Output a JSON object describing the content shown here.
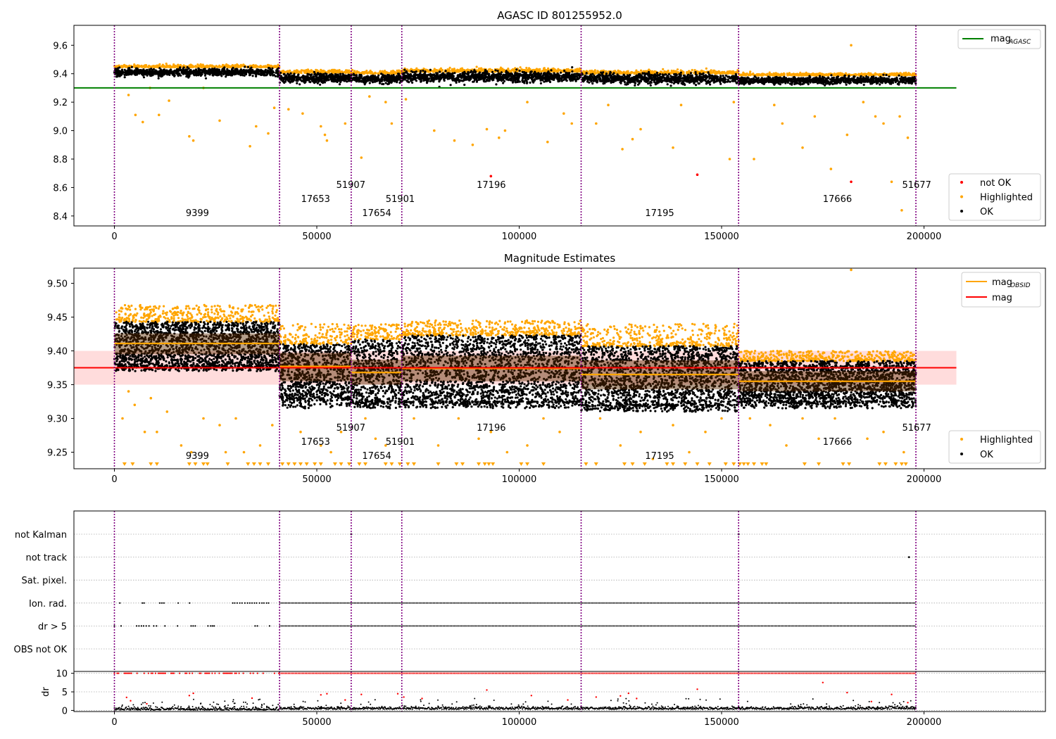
{
  "chart_data": [
    {
      "type": "scatter",
      "title": "AGASC ID 801255952.0",
      "xlim": [
        -10000,
        230000
      ],
      "ylim": [
        8.33,
        9.74
      ],
      "x_ticks": [
        0,
        50000,
        100000,
        150000,
        200000
      ],
      "y_ticks": [
        8.4,
        8.6,
        8.8,
        9.0,
        9.2,
        9.4,
        9.6
      ],
      "y_tick_labels": [
        "8.4",
        "8.6",
        "8.8",
        "9.0",
        "9.2",
        "9.4",
        "9.6"
      ],
      "mag_agasc": 9.3,
      "obs_boundaries": [
        0,
        40800,
        58500,
        71000,
        115300,
        154200,
        198000
      ],
      "obs_labels": [
        {
          "text": "9399",
          "x": 20500,
          "level": 0
        },
        {
          "text": "17653",
          "x": 49700,
          "level": 1
        },
        {
          "text": "51907",
          "x": 58400,
          "level": 2
        },
        {
          "text": "17654",
          "x": 64800,
          "level": 0
        },
        {
          "text": "51901",
          "x": 70600,
          "level": 1
        },
        {
          "text": "17196",
          "x": 93100,
          "level": 2
        },
        {
          "text": "17195",
          "x": 134700,
          "level": 0
        },
        {
          "text": "17666",
          "x": 178600,
          "level": 1
        },
        {
          "text": "51677",
          "x": 198200,
          "level": 2
        }
      ],
      "segments": [
        {
          "x0": 0,
          "x1": 40800,
          "center": 9.41,
          "spread": 0.013
        },
        {
          "x0": 40800,
          "x1": 58500,
          "center": 9.37,
          "spread": 0.016
        },
        {
          "x0": 58500,
          "x1": 71000,
          "center": 9.365,
          "spread": 0.014
        },
        {
          "x0": 71000,
          "x1": 115300,
          "center": 9.378,
          "spread": 0.018
        },
        {
          "x0": 115300,
          "x1": 154200,
          "center": 9.365,
          "spread": 0.017
        },
        {
          "x0": 154200,
          "x1": 198000,
          "center": 9.353,
          "spread": 0.012
        }
      ],
      "outliers_highlighted": [
        [
          3500,
          9.25
        ],
        [
          5200,
          9.11
        ],
        [
          7000,
          9.06
        ],
        [
          8800,
          9.3
        ],
        [
          11000,
          9.11
        ],
        [
          13500,
          9.21
        ],
        [
          18500,
          8.96
        ],
        [
          19500,
          8.93
        ],
        [
          22000,
          9.3
        ],
        [
          26000,
          9.07
        ],
        [
          33500,
          8.89
        ],
        [
          35000,
          9.03
        ],
        [
          38000,
          8.98
        ],
        [
          39500,
          9.16
        ],
        [
          43000,
          9.15
        ],
        [
          46500,
          9.12
        ],
        [
          51000,
          9.03
        ],
        [
          52000,
          8.97
        ],
        [
          52500,
          8.93
        ],
        [
          57000,
          9.05
        ],
        [
          61000,
          8.81
        ],
        [
          63000,
          9.24
        ],
        [
          67000,
          9.2
        ],
        [
          68500,
          9.05
        ],
        [
          72000,
          9.22
        ],
        [
          79000,
          9.0
        ],
        [
          84000,
          8.93
        ],
        [
          88500,
          8.9
        ],
        [
          92000,
          9.01
        ],
        [
          95000,
          8.95
        ],
        [
          96500,
          9.0
        ],
        [
          102000,
          9.2
        ],
        [
          107000,
          8.92
        ],
        [
          111000,
          9.12
        ],
        [
          113000,
          9.05
        ],
        [
          119000,
          9.05
        ],
        [
          122000,
          9.18
        ],
        [
          125500,
          8.87
        ],
        [
          128000,
          8.94
        ],
        [
          130000,
          9.01
        ],
        [
          138000,
          8.88
        ],
        [
          140000,
          9.18
        ],
        [
          152000,
          8.8
        ],
        [
          153000,
          9.2
        ],
        [
          158000,
          8.8
        ],
        [
          163000,
          9.18
        ],
        [
          165000,
          9.05
        ],
        [
          170000,
          8.88
        ],
        [
          173000,
          9.1
        ],
        [
          177000,
          8.73
        ],
        [
          181000,
          8.97
        ],
        [
          182000,
          9.6
        ],
        [
          185000,
          9.2
        ],
        [
          188000,
          9.1
        ],
        [
          192000,
          8.64
        ],
        [
          194500,
          8.44
        ],
        [
          196000,
          8.95
        ],
        [
          190000,
          9.05
        ],
        [
          194000,
          9.1
        ]
      ],
      "outliers_not_ok": [
        [
          93000,
          8.68
        ],
        [
          144000,
          8.69
        ],
        [
          182000,
          8.64
        ]
      ],
      "legends": [
        {
          "entries": [
            {
              "label": "mag",
              "subscript": "AGASC",
              "color": "#008000",
              "kind": "line"
            }
          ],
          "placement": "upper right"
        },
        {
          "entries": [
            {
              "label": "not OK",
              "color": "#ff0000",
              "kind": "dot"
            },
            {
              "label": "Highlighted",
              "color": "#ffa500",
              "kind": "dot"
            },
            {
              "label": "OK",
              "color": "#000000",
              "kind": "dot"
            }
          ],
          "placement": "lower right"
        }
      ]
    },
    {
      "type": "scatter",
      "title": "Magnitude Estimates",
      "xlim": [
        -10000,
        230000
      ],
      "ylim": [
        9.2255,
        9.5225
      ],
      "x_ticks": [
        0,
        50000,
        100000,
        150000,
        200000
      ],
      "y_ticks": [
        9.25,
        9.3,
        9.35,
        9.4,
        9.45,
        9.5
      ],
      "y_tick_labels": [
        "9.25",
        "9.30",
        "9.35",
        "9.40",
        "9.45",
        "9.50"
      ],
      "mag": 9.375,
      "mag_band": [
        9.35,
        9.4
      ],
      "mag_band_xrange": [
        -10000,
        208000
      ],
      "obs_mag": [
        {
          "x0": 0,
          "x1": 40800,
          "mag": 9.411,
          "lo": 9.395,
          "hi": 9.426
        },
        {
          "x0": 40800,
          "x1": 58500,
          "mag": 9.377,
          "lo": 9.355,
          "hi": 9.397
        },
        {
          "x0": 58500,
          "x1": 71000,
          "mag": 9.368,
          "lo": 9.35,
          "hi": 9.387
        },
        {
          "x0": 71000,
          "x1": 115300,
          "mag": 9.374,
          "lo": 9.355,
          "hi": 9.393
        },
        {
          "x0": 115300,
          "x1": 154200,
          "mag": 9.365,
          "lo": 9.343,
          "hi": 9.386
        },
        {
          "x0": 154200,
          "x1": 198000,
          "mag": 9.355,
          "lo": 9.34,
          "hi": 9.37
        }
      ],
      "core": [
        {
          "x0": 0,
          "x1": 40800,
          "hi": 9.443,
          "lo": 9.378,
          "top": 9.468,
          "bot": 9.37
        },
        {
          "x0": 40800,
          "x1": 58500,
          "hi": 9.41,
          "lo": 9.33,
          "top": 9.44,
          "bot": 9.315
        },
        {
          "x0": 58500,
          "x1": 71000,
          "hi": 9.417,
          "lo": 9.325,
          "top": 9.44,
          "bot": 9.315
        },
        {
          "x0": 71000,
          "x1": 115300,
          "hi": 9.423,
          "lo": 9.325,
          "top": 9.445,
          "bot": 9.315
        },
        {
          "x0": 115300,
          "x1": 154200,
          "hi": 9.407,
          "lo": 9.32,
          "top": 9.44,
          "bot": 9.31
        },
        {
          "x0": 154200,
          "x1": 198000,
          "hi": 9.385,
          "lo": 9.325,
          "top": 9.4,
          "bot": 9.315
        }
      ],
      "outliers_highlighted": [
        [
          2000,
          9.3
        ],
        [
          3500,
          9.34
        ],
        [
          5000,
          9.32
        ],
        [
          7500,
          9.28
        ],
        [
          9000,
          9.33
        ],
        [
          10500,
          9.28
        ],
        [
          13000,
          9.31
        ],
        [
          16500,
          9.26
        ],
        [
          19000,
          9.25
        ],
        [
          22000,
          9.3
        ],
        [
          26000,
          9.29
        ],
        [
          27500,
          9.25
        ],
        [
          30000,
          9.3
        ],
        [
          32000,
          9.25
        ],
        [
          36000,
          9.26
        ],
        [
          39000,
          9.29
        ],
        [
          46000,
          9.28
        ],
        [
          51000,
          9.26
        ],
        [
          53500,
          9.25
        ],
        [
          56000,
          9.28
        ],
        [
          62000,
          9.3
        ],
        [
          64500,
          9.27
        ],
        [
          67000,
          9.26
        ],
        [
          74000,
          9.3
        ],
        [
          80000,
          9.26
        ],
        [
          85000,
          9.3
        ],
        [
          90000,
          9.27
        ],
        [
          93000,
          9.28
        ],
        [
          97000,
          9.25
        ],
        [
          102000,
          9.26
        ],
        [
          106000,
          9.3
        ],
        [
          110000,
          9.28
        ],
        [
          120000,
          9.3
        ],
        [
          125000,
          9.26
        ],
        [
          130000,
          9.28
        ],
        [
          133000,
          9.24
        ],
        [
          138000,
          9.29
        ],
        [
          142000,
          9.25
        ],
        [
          146000,
          9.28
        ],
        [
          150000,
          9.3
        ],
        [
          157000,
          9.3
        ],
        [
          162000,
          9.29
        ],
        [
          166000,
          9.26
        ],
        [
          170000,
          9.3
        ],
        [
          174000,
          9.27
        ],
        [
          178000,
          9.3
        ],
        [
          182000,
          9.52
        ],
        [
          186000,
          9.27
        ],
        [
          190000,
          9.28
        ],
        [
          195000,
          9.25
        ]
      ],
      "lower_limit_x": [
        2500,
        4500,
        9000,
        10500,
        18500,
        20000,
        22000,
        23000,
        28000,
        33000,
        34500,
        36000,
        38000,
        41500,
        43000,
        44500,
        46000,
        47500,
        49500,
        51000,
        54500,
        56000,
        58000,
        60500,
        62000,
        67000,
        68500,
        70500,
        72500,
        74000,
        80000,
        84500,
        86000,
        90000,
        91500,
        92500,
        93500,
        100500,
        102000,
        106000,
        116500,
        119000,
        126000,
        128000,
        131000,
        136500,
        138000,
        141000,
        144000,
        147000,
        151000,
        153000,
        154500,
        155500,
        156500,
        158000,
        160000,
        161000,
        170500,
        174000,
        180000,
        181500,
        189000,
        190500,
        193000,
        194500,
        195500
      ],
      "obs_labels": [
        {
          "text": "9399",
          "x": 20500,
          "level": 0
        },
        {
          "text": "17653",
          "x": 49700,
          "level": 1
        },
        {
          "text": "51907",
          "x": 58400,
          "level": 2
        },
        {
          "text": "17654",
          "x": 64800,
          "level": 0
        },
        {
          "text": "51901",
          "x": 70600,
          "level": 1
        },
        {
          "text": "17196",
          "x": 93100,
          "level": 2
        },
        {
          "text": "17195",
          "x": 134700,
          "level": 0
        },
        {
          "text": "17666",
          "x": 178600,
          "level": 1
        },
        {
          "text": "51677",
          "x": 198200,
          "level": 2
        }
      ],
      "legends": [
        {
          "entries": [
            {
              "label": "mag",
              "subscript": "OBSID",
              "color": "#ffa500",
              "kind": "line"
            },
            {
              "label": "mag",
              "subscript": "",
              "color": "#ff0000",
              "kind": "line"
            }
          ],
          "placement": "upper right"
        },
        {
          "entries": [
            {
              "label": "Highlighted",
              "color": "#ffa500",
              "kind": "dot"
            },
            {
              "label": "OK",
              "color": "#000000",
              "kind": "dot"
            }
          ],
          "placement": "lower right"
        }
      ]
    },
    {
      "type": "scatter",
      "xlim": [
        -10000,
        230000
      ],
      "x_ticks": [
        0,
        50000,
        100000,
        150000,
        200000
      ],
      "flag_rows": [
        "not Kalman",
        "not track",
        "Sat. pixel.",
        "Ion. rad.",
        "dr > 5",
        "OBS not OK"
      ],
      "flag_segments": [
        {
          "row": "Ion. rad.",
          "style": "sparse",
          "x0": 0,
          "x1": 40800
        },
        {
          "row": "Ion. rad.",
          "style": "dense",
          "x0": 40800,
          "x1": 198000
        },
        {
          "row": "dr > 5",
          "style": "sparse",
          "x0": 0,
          "x1": 40800
        },
        {
          "row": "dr > 5",
          "style": "dense",
          "x0": 40800,
          "x1": 198000
        }
      ],
      "flag_points": [
        {
          "row": "not track",
          "x": 196300
        },
        {
          "row": "not Kalman",
          "x": 58500
        },
        {
          "row": "not Kalman",
          "x": 154200
        }
      ],
      "dr_ylabel": "dr",
      "dr_ylim": [
        -0.3,
        10.5
      ],
      "dr_ticks": [
        0,
        5,
        10
      ],
      "dr_clip_value": 10,
      "dr_outliers": [
        [
          3000,
          3.5
        ],
        [
          4000,
          2.6
        ],
        [
          8000,
          1.8
        ],
        [
          18500,
          4.0
        ],
        [
          19500,
          4.6
        ],
        [
          34000,
          3.3
        ],
        [
          51000,
          4.2
        ],
        [
          52500,
          4.5
        ],
        [
          57000,
          2.8
        ],
        [
          61000,
          4.3
        ],
        [
          70000,
          4.5
        ],
        [
          71500,
          3.6
        ],
        [
          76000,
          3.2
        ],
        [
          92000,
          5.5
        ],
        [
          103000,
          4.0
        ],
        [
          112000,
          2.8
        ],
        [
          119000,
          3.6
        ],
        [
          125000,
          3.9
        ],
        [
          127000,
          4.6
        ],
        [
          129000,
          3.2
        ],
        [
          144000,
          5.7
        ],
        [
          175000,
          7.5
        ],
        [
          181000,
          4.8
        ],
        [
          187000,
          2.4
        ],
        [
          192000,
          4.3
        ],
        [
          196000,
          2.1
        ]
      ]
    }
  ]
}
